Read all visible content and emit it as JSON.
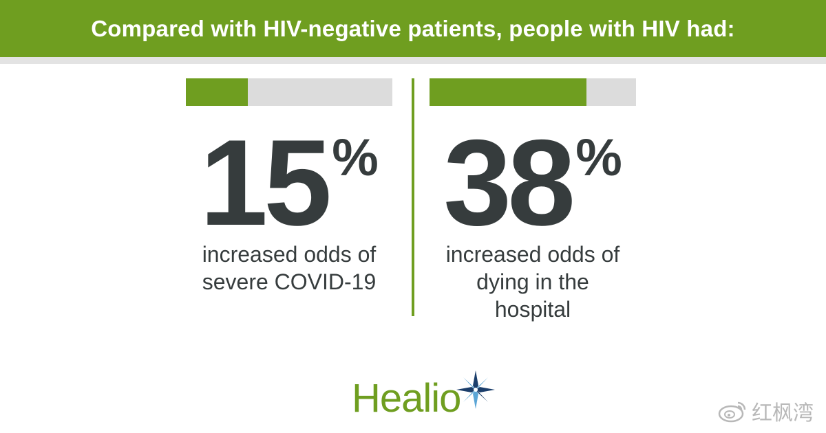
{
  "header": {
    "title": "Compared with HIV-negative patients, people with HIV had:"
  },
  "stats": [
    {
      "value": "15",
      "unit": "%",
      "fraction": 0.3,
      "description": "increased odds of severe COVID-19"
    },
    {
      "value": "38",
      "unit": "%",
      "fraction": 0.76,
      "description": "increased odds of dying in the hospital"
    }
  ],
  "logo": {
    "text": "Healio",
    "icon": "compass-star-icon"
  },
  "watermark": {
    "text": "红枫湾",
    "icon": "weibo-icon"
  },
  "colors": {
    "accent_green": "#6f9e20",
    "bar_track": "#dcdcdc",
    "number_text": "#363c3d",
    "star_dark_blue": "#1b3e6b",
    "star_light_blue": "#5ba6d6"
  }
}
